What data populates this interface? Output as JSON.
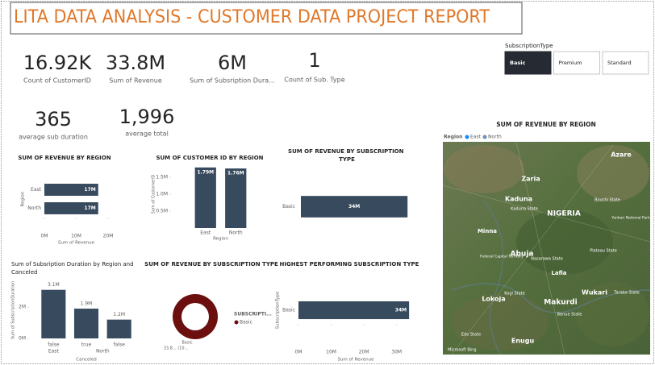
{
  "title": "LITA DATA ANALYSIS - CUSTOMER DATA PROJECT REPORT",
  "cards": [
    {
      "value": "16.92K",
      "label": "Count of CustomerID"
    },
    {
      "value": "33.8M",
      "label": "Sum of Revenue"
    },
    {
      "value": "6M",
      "label": "Sum of Subsription Dura..."
    },
    {
      "value": "1",
      "label": "Count of Sub. Type"
    },
    {
      "value": "365",
      "label": "average sub duration"
    },
    {
      "value": "1,996",
      "label": "average total"
    }
  ],
  "slicer": {
    "title": "SubscriptionType",
    "options": [
      "Basic",
      "Premium",
      "Standard"
    ],
    "selected": 0
  },
  "map": {
    "title": "SUM OF REVENUE BY REGION",
    "legend_title": "Region",
    "legend": [
      {
        "name": "East",
        "color": "#118dff"
      },
      {
        "name": "North",
        "color": "#6f8fb3"
      }
    ],
    "places": [
      "Zaria",
      "Azare",
      "Kaduna",
      "Kaduna State",
      "NIGERIA",
      "Bauchi State",
      "Yankari National Park",
      "Minna",
      "Abuja",
      "Federal Capital Territory",
      "Nasarawa State",
      "Plateau State",
      "Lafia",
      "Kogi State",
      "Lokoja",
      "Makurdi",
      "Benue State",
      "Wukari",
      "Taraba State",
      "Enugu",
      "Edo State"
    ],
    "attribution": "Microsoft Bing"
  },
  "chart_data": [
    {
      "type": "hbar",
      "title": "SUM OF REVENUE BY REGION",
      "categories": [
        "East",
        "North"
      ],
      "values": [
        16900000,
        16900000
      ],
      "value_labels": [
        "17M",
        "17M"
      ],
      "color": "#374a5e",
      "xlim": [
        0,
        20000000
      ],
      "xticks": [
        {
          "value": 0,
          "label": "0M"
        },
        {
          "value": 10000000,
          "label": "10M"
        },
        {
          "value": 20000000,
          "label": "20M"
        }
      ],
      "xlabel": "Sum of Revenue",
      "ylabel": "Region"
    },
    {
      "type": "bar",
      "title": "SUM OF CUSTOMER ID BY REGION",
      "categories": [
        "East",
        "North"
      ],
      "values": [
        1790000,
        1760000
      ],
      "value_labels": [
        "1.79M",
        "1.76M"
      ],
      "color": "#374a5e",
      "ylim": [
        0,
        2000000
      ],
      "yticks": [
        {
          "value": 500000,
          "label": "0.5M"
        },
        {
          "value": 1000000,
          "label": "1.0M"
        },
        {
          "value": 1500000,
          "label": "1.5M"
        }
      ],
      "xlabel": "Region",
      "ylabel": "Sum of CustomerID"
    },
    {
      "type": "hbar",
      "title": "SUM OF REVENUE BY SUBSCRIPTION TYPE",
      "categories": [
        "Basic"
      ],
      "values": [
        33800000
      ],
      "value_labels": [
        "34M"
      ],
      "color": "#374a5e",
      "xlim": [
        0,
        34000000
      ]
    },
    {
      "type": "bar",
      "title": "Sum of Subsription Duration by Region and Canceled",
      "categories": [
        "false",
        "true",
        "false"
      ],
      "groups": [
        {
          "name": "East",
          "count": 1
        },
        {
          "name": "North",
          "count": 2
        }
      ],
      "values": [
        3100000,
        1900000,
        1200000
      ],
      "value_labels": [
        "3.1M",
        "1.9M",
        "1.2M"
      ],
      "color": "#374a5e",
      "ylim": [
        0,
        3600000
      ],
      "yticks": [
        {
          "value": 0,
          "label": "0M"
        },
        {
          "value": 2000000,
          "label": "2M"
        }
      ],
      "xlabel": "Canceled",
      "ylabel": "Sum of SubscriptionDuration"
    },
    {
      "type": "donut",
      "title": "SUM OF REVENUE BY SUBSCRIPTION TYPE",
      "categories": [
        "Basic"
      ],
      "values": [
        33800000
      ],
      "value_labels": [
        "33.8... (10..."
      ],
      "colors": [
        "#6b0f0f"
      ],
      "legend_title": "SUBSCRIPTI..."
    },
    {
      "type": "hbar",
      "title": "HIGHEST PERFORMING SUBSCRIPTION TYPE",
      "categories": [
        "Basic"
      ],
      "values": [
        33800000
      ],
      "value_labels": [
        "34M"
      ],
      "color": "#374a5e",
      "xlim": [
        0,
        35000000
      ],
      "xticks": [
        {
          "value": 0,
          "label": "0M"
        },
        {
          "value": 10000000,
          "label": "10M"
        },
        {
          "value": 20000000,
          "label": "20M"
        },
        {
          "value": 30000000,
          "label": "30M"
        }
      ],
      "xlabel": "Sum of Revenue",
      "ylabel": "SubscriptionType"
    }
  ]
}
